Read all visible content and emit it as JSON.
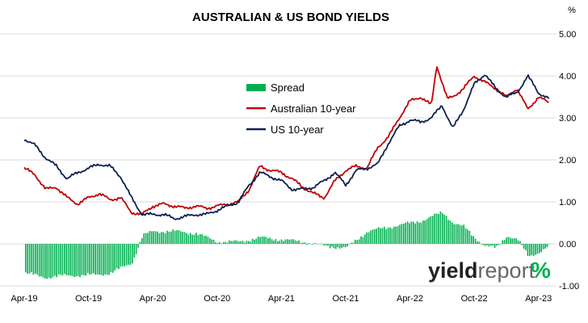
{
  "chart_data": {
    "type": "area",
    "title": "AUSTRALIAN & US BOND YIELDS",
    "y_unit": "%",
    "ylim": [
      -1.0,
      5.0
    ],
    "y_ticks": [
      "5.00",
      "4.00",
      "3.00",
      "2.00",
      "1.00",
      "0.00",
      "-1.00"
    ],
    "y_tick_values": [
      5,
      4,
      3,
      2,
      1,
      0,
      -1
    ],
    "x_tick_labels": [
      "Apr-19",
      "Oct-19",
      "Apr-20",
      "Oct-20",
      "Apr-21",
      "Oct-21",
      "Apr-22",
      "Oct-22",
      "Apr-23"
    ],
    "x_range_months": [
      0,
      49
    ],
    "grid": true,
    "legend_position": "center-left",
    "series": [
      {
        "name": "Spread",
        "style": "columns",
        "color": "#00b050",
        "x_months": [
          0,
          2,
          4,
          6,
          8,
          10,
          11,
          12,
          14,
          16,
          18,
          20,
          22,
          24,
          26,
          28,
          30,
          32,
          34,
          35,
          37,
          39,
          40,
          41,
          42,
          43,
          44,
          45,
          46,
          47,
          48,
          49
        ],
        "values": [
          -0.7,
          -0.8,
          -0.75,
          -0.75,
          -0.7,
          -0.45,
          0.2,
          0.3,
          0.3,
          0.25,
          0.05,
          0.05,
          0.15,
          0.1,
          0.05,
          -0.05,
          -0.1,
          0.3,
          0.4,
          0.45,
          0.55,
          0.75,
          0.5,
          0.4,
          0.15,
          -0.05,
          -0.1,
          0.2,
          0.1,
          -0.3,
          -0.2,
          -0.05
        ]
      },
      {
        "name": "Australian 10-year",
        "style": "line",
        "color": "#c00000",
        "x_months": [
          0,
          1,
          2,
          3,
          4,
          5,
          6,
          7,
          8,
          9,
          10,
          11,
          12,
          13,
          14,
          15,
          16,
          17,
          18,
          19,
          20,
          21,
          22,
          23,
          24,
          25,
          26,
          27,
          28,
          29,
          30,
          31,
          32,
          33,
          34,
          35,
          36,
          37,
          38,
          38.5,
          39,
          39.5,
          40,
          41,
          42,
          43,
          44,
          45,
          46,
          47,
          48,
          49
        ],
        "values": [
          1.8,
          1.65,
          1.3,
          1.35,
          1.1,
          0.95,
          1.1,
          1.2,
          1.05,
          1.1,
          0.75,
          0.7,
          0.9,
          0.95,
          0.9,
          0.85,
          0.9,
          0.85,
          0.9,
          0.95,
          1.0,
          1.3,
          1.85,
          1.75,
          1.7,
          1.55,
          1.35,
          1.2,
          1.1,
          1.5,
          1.75,
          1.85,
          1.8,
          2.3,
          2.55,
          3.0,
          3.4,
          3.5,
          3.3,
          4.25,
          3.85,
          3.45,
          3.5,
          3.7,
          4.0,
          3.85,
          3.7,
          3.5,
          3.7,
          3.2,
          3.5,
          3.35
        ]
      },
      {
        "name": "US 10-year",
        "style": "line",
        "color": "#0c2050",
        "x_months": [
          0,
          1,
          2,
          3,
          4,
          5,
          6,
          7,
          8,
          9,
          10,
          11,
          12,
          13,
          14,
          15,
          16,
          17,
          18,
          19,
          20,
          21,
          22,
          23,
          24,
          25,
          26,
          27,
          28,
          29,
          30,
          31,
          32,
          33,
          34,
          35,
          36,
          37,
          38,
          39,
          40,
          41,
          42,
          43,
          44,
          45,
          46,
          47,
          48,
          49
        ],
        "values": [
          2.5,
          2.35,
          2.05,
          1.85,
          1.55,
          1.7,
          1.8,
          1.9,
          1.85,
          1.6,
          1.1,
          0.7,
          0.7,
          0.7,
          0.6,
          0.65,
          0.7,
          0.7,
          0.8,
          0.9,
          1.0,
          1.4,
          1.7,
          1.6,
          1.5,
          1.3,
          1.3,
          1.35,
          1.5,
          1.7,
          1.4,
          1.75,
          1.8,
          1.9,
          2.4,
          2.8,
          2.95,
          2.9,
          3.0,
          3.3,
          2.75,
          3.2,
          3.8,
          4.05,
          3.7,
          3.5,
          3.6,
          4.0,
          3.6,
          3.45
        ]
      }
    ],
    "logo": "yieldreport%"
  }
}
